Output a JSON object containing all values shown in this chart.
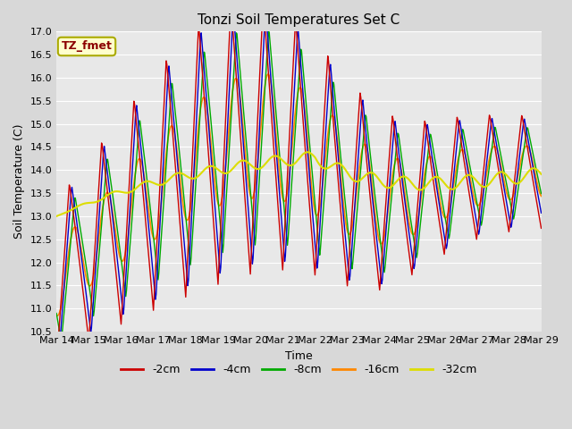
{
  "title": "Tonzi Soil Temperatures Set C",
  "xlabel": "Time",
  "ylabel": "Soil Temperature (C)",
  "ylim": [
    10.5,
    17.0
  ],
  "yticks": [
    10.5,
    11.0,
    11.5,
    12.0,
    12.5,
    13.0,
    13.5,
    14.0,
    14.5,
    15.0,
    15.5,
    16.0,
    16.5,
    17.0
  ],
  "xtick_labels": [
    "Mar 14",
    "Mar 15",
    "Mar 16",
    "Mar 17",
    "Mar 18",
    "Mar 19",
    "Mar 20",
    "Mar 21",
    "Mar 22",
    "Mar 23",
    "Mar 24",
    "Mar 25",
    "Mar 26",
    "Mar 27",
    "Mar 28",
    "Mar 29"
  ],
  "line_colors": [
    "#cc0000",
    "#0000cc",
    "#00aa00",
    "#ff8800",
    "#dddd00"
  ],
  "line_labels": [
    "-2cm",
    "-4cm",
    "-8cm",
    "-16cm",
    "-32cm"
  ],
  "legend_label": "TZ_fmet",
  "legend_text_color": "#8b0000",
  "legend_box_facecolor": "#ffffcc",
  "legend_box_edgecolor": "#aaaa00",
  "fig_facecolor": "#d8d8d8",
  "plot_facecolor": "#e8e8e8",
  "title_fontsize": 11,
  "axis_fontsize": 9,
  "tick_fontsize": 8,
  "n_per_day": 48
}
